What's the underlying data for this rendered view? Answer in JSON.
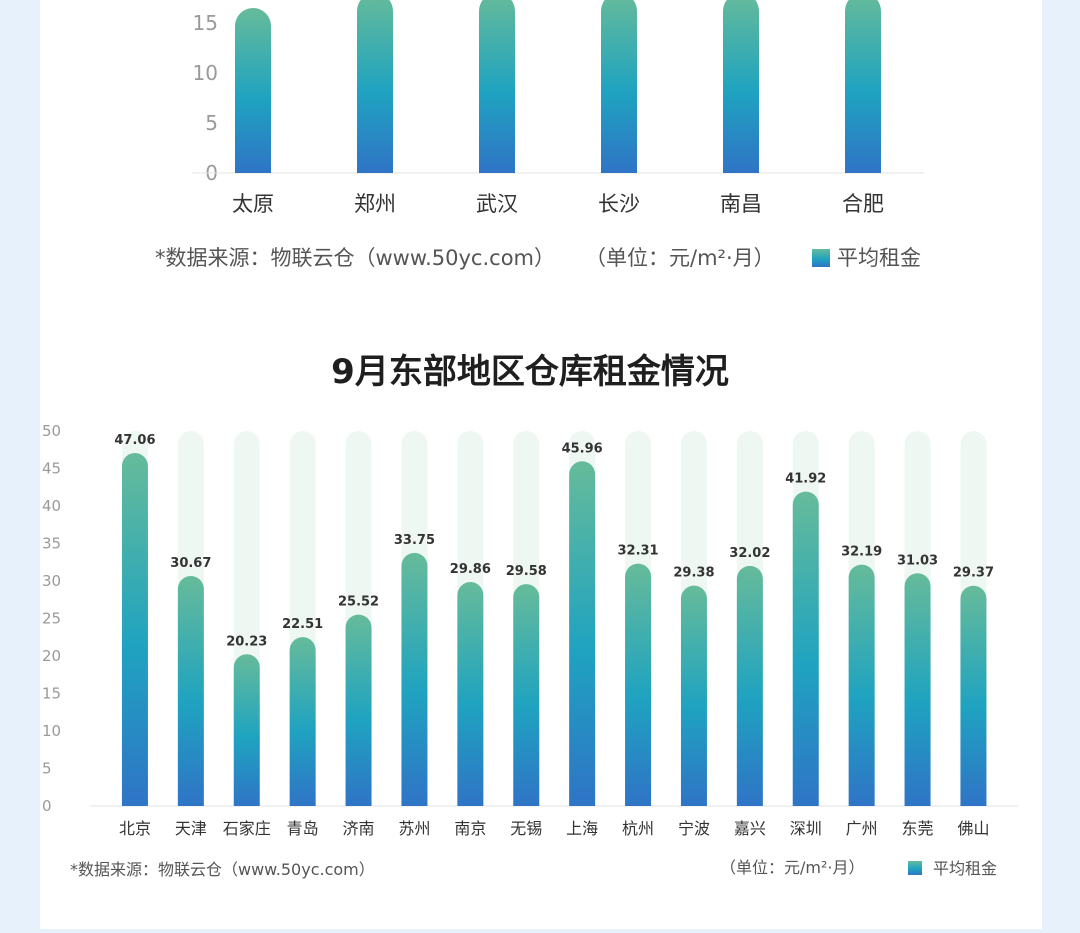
{
  "colors": {
    "bar_top": "#66bb9a",
    "bar_mid": "#1fa3c0",
    "bar_bottom": "#2f74c6",
    "track": "#eef7f1",
    "page_bg": "#e6f1fb"
  },
  "chart_data": [
    {
      "type": "bar",
      "title": "",
      "categories": [
        "太原",
        "郑州",
        "武汉",
        "长沙",
        "南昌",
        "合肥"
      ],
      "series": [
        {
          "name": "平均租金",
          "values": [
            16.5,
            18,
            18,
            18,
            18,
            18
          ]
        }
      ],
      "yticks": [
        "0",
        "5",
        "10",
        "15"
      ],
      "ylim": [
        0,
        17.5
      ],
      "xlabel": "",
      "ylabel": "",
      "grid": false,
      "legend": "bottom-right",
      "source": "*数据来源：物联云仓（www.50yc.com）",
      "unit": "（单位：元/m²·月）"
    },
    {
      "type": "bar",
      "title": "9月东部地区仓库租金情况",
      "categories": [
        "北京",
        "天津",
        "石家庄",
        "青岛",
        "济南",
        "苏州",
        "南京",
        "无锡",
        "上海",
        "杭州",
        "宁波",
        "嘉兴",
        "深圳",
        "广州",
        "东莞",
        "佛山"
      ],
      "series": [
        {
          "name": "平均租金",
          "values": [
            47.06,
            30.67,
            20.23,
            22.51,
            25.52,
            33.75,
            29.86,
            29.58,
            45.96,
            32.31,
            29.38,
            32.02,
            41.92,
            32.19,
            31.03,
            29.37
          ]
        }
      ],
      "data_labels": [
        "47.06",
        "30.67",
        "20.23",
        "22.51",
        "25.52",
        "33.75",
        "29.86",
        "29.58",
        "45.96",
        "32.31",
        "29.38",
        "32.02",
        "41.92",
        "32.19",
        "31.03",
        "29.37"
      ],
      "yticks": [
        "0",
        "5",
        "10",
        "15",
        "20",
        "25",
        "30",
        "35",
        "40",
        "45",
        "50"
      ],
      "ylim": [
        0,
        50
      ],
      "xlabel": "",
      "ylabel": "",
      "grid": false,
      "legend": "bottom-right",
      "source": "*数据来源：物联云仓（www.50yc.com）",
      "unit": "（单位：元/m²·月）"
    }
  ]
}
